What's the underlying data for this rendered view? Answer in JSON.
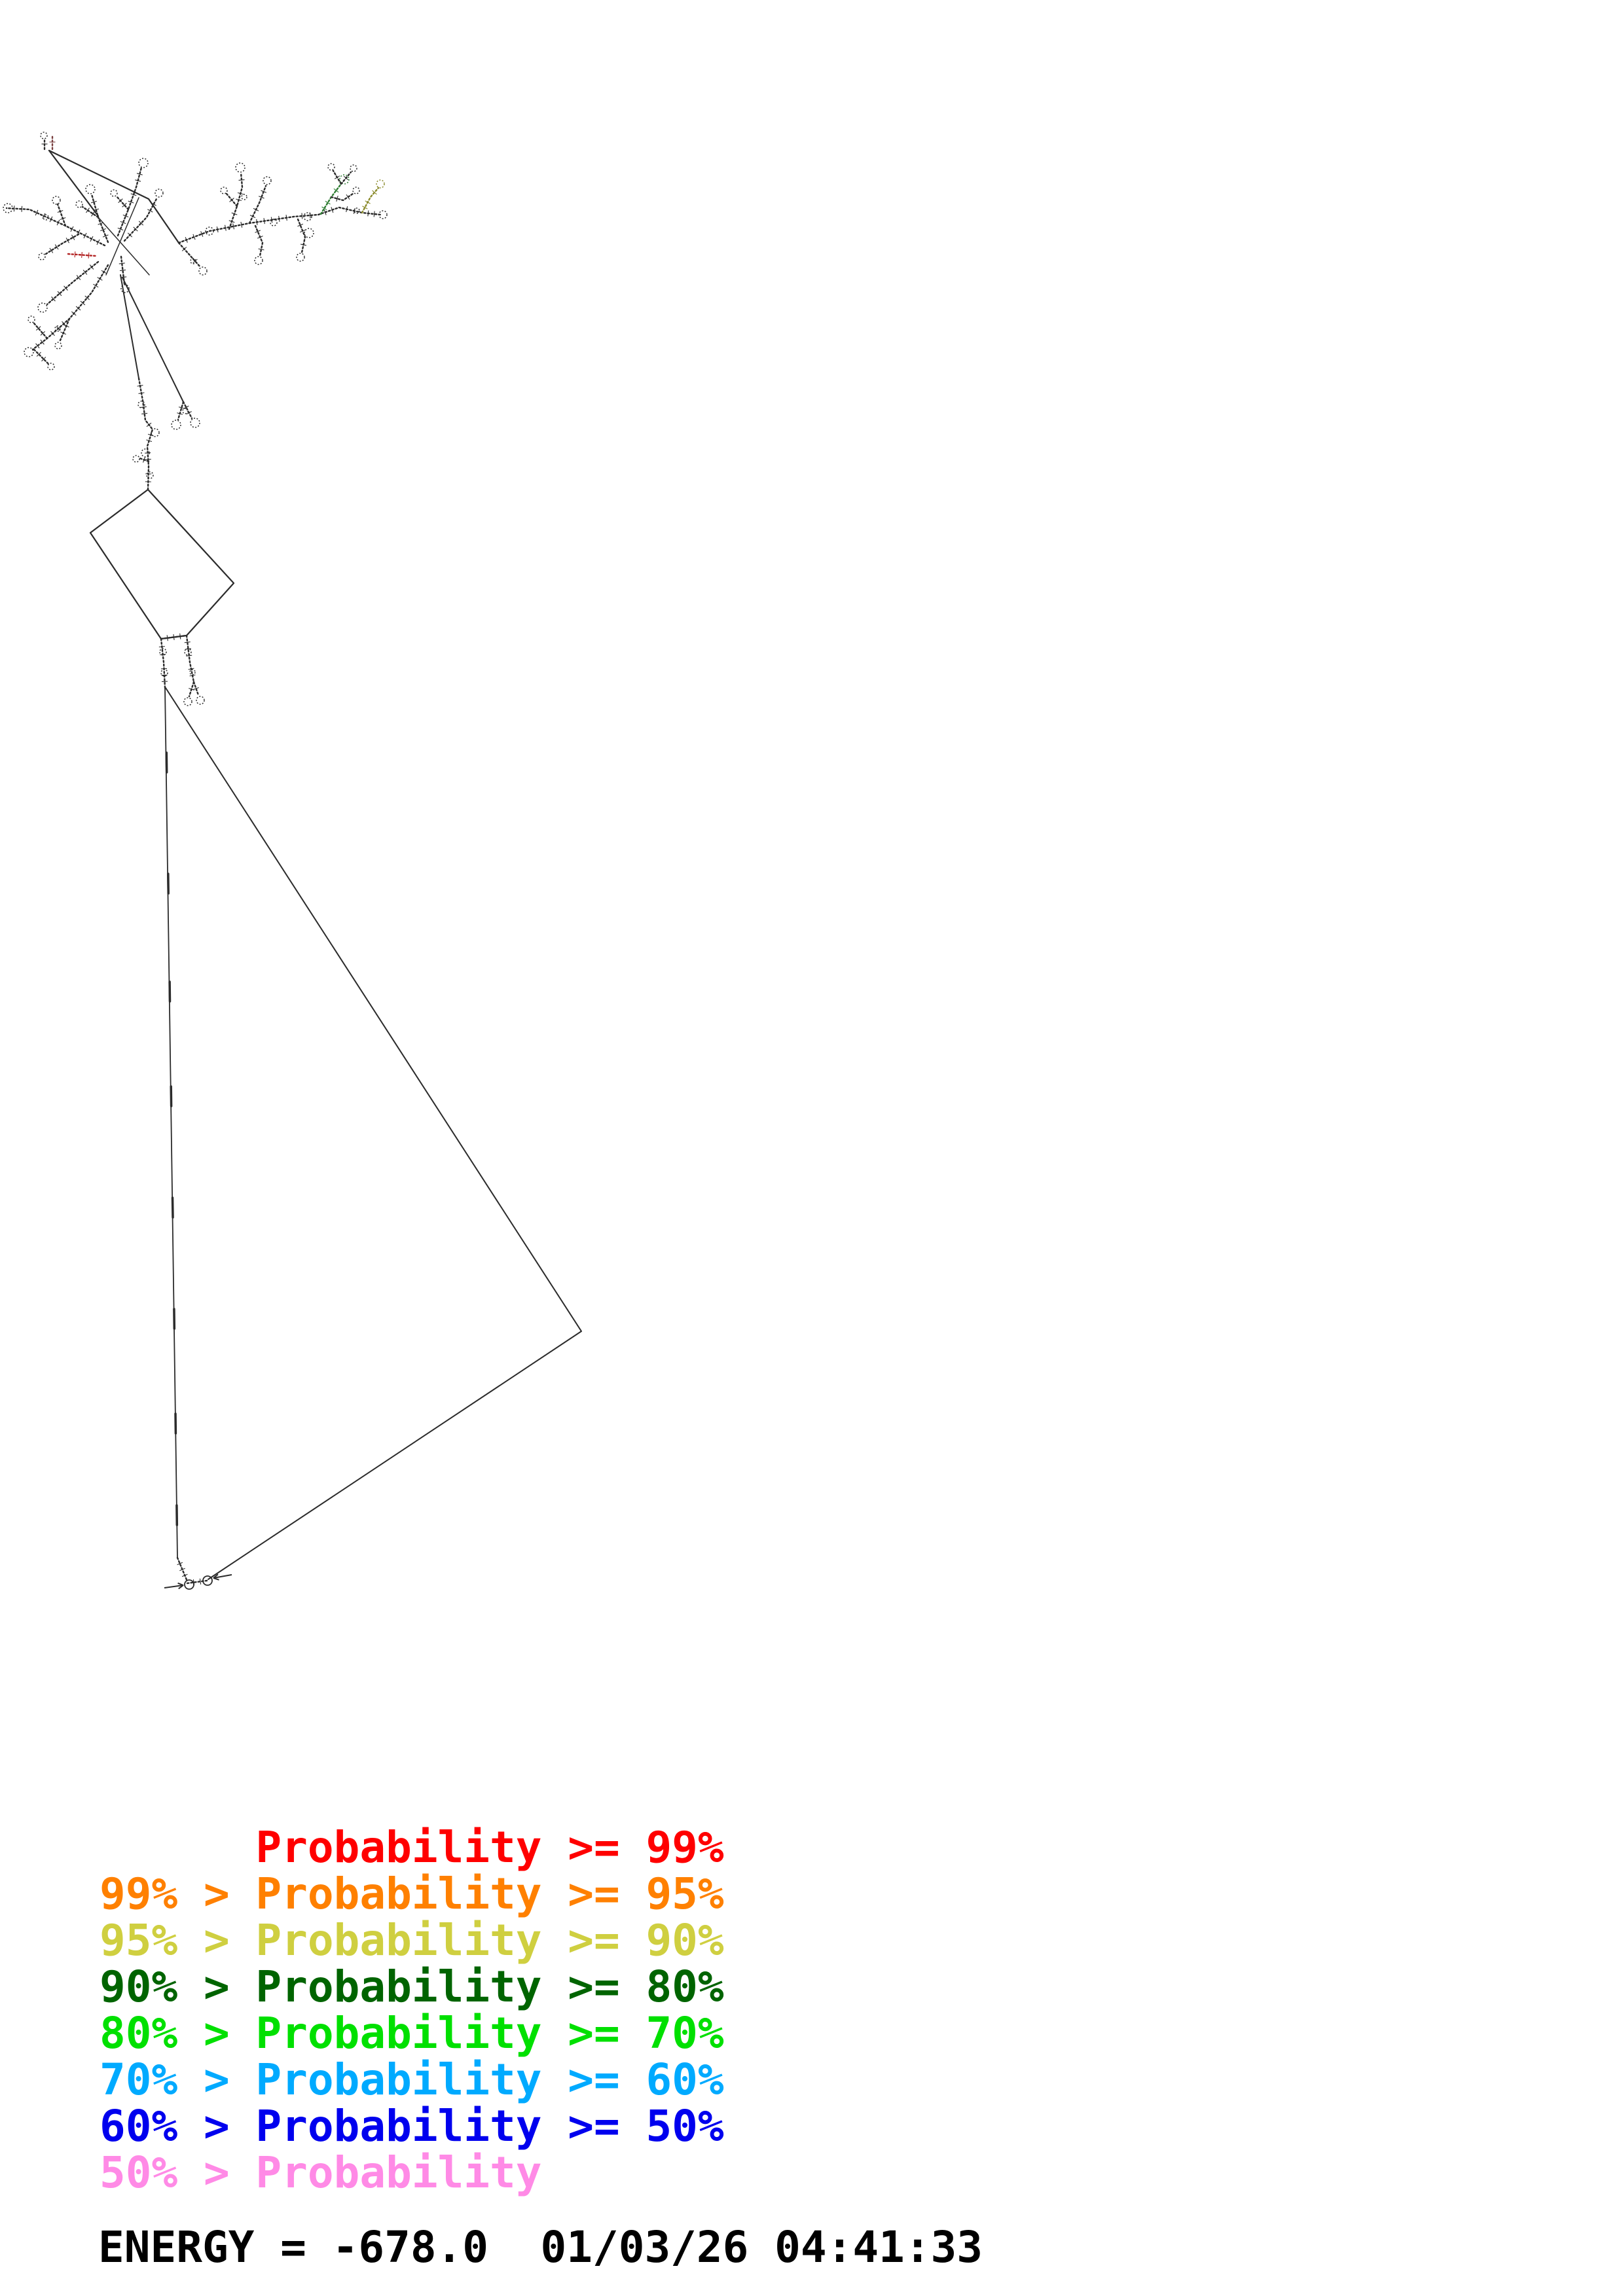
{
  "plot": {
    "type": "rna-secondary-structure-probability-plot",
    "background": "#ffffff"
  },
  "legend": {
    "rows": [
      {
        "text": "      Probability >= 99%",
        "color": "#ff0000"
      },
      {
        "text": "99% > Probability >= 95%",
        "color": "#ff8000"
      },
      {
        "text": "95% > Probability >= 90%",
        "color": "#cfcf40"
      },
      {
        "text": "90% > Probability >= 80%",
        "color": "#006400"
      },
      {
        "text": "80% > Probability >= 70%",
        "color": "#00e000"
      },
      {
        "text": "70% > Probability >= 60%",
        "color": "#00aaff"
      },
      {
        "text": "60% > Probability >= 50%",
        "color": "#0000ee"
      },
      {
        "text": "50% > Probability",
        "color": "#ff8ae6"
      }
    ]
  },
  "footer": {
    "energy_label": "ENERGY",
    "energy_value": "-678.0",
    "datetime": "01/03/26 04:41:33",
    "energy_line": "ENERGY = -678.0  01/03/26 04:41:33"
  },
  "structure": {
    "stroke": "#2b2b2b",
    "solid_lines": [
      {
        "name": "connector-stub-to-bend",
        "points": [
          [
            75,
            230
          ],
          [
            227,
            304
          ],
          [
            273,
            371
          ]
        ],
        "w": 2.2
      },
      {
        "name": "connector-stub-to-cluster",
        "points": [
          [
            75,
            230
          ],
          [
            150,
            330
          ]
        ],
        "w": 2.2
      },
      {
        "name": "connector-cluster-to-chain",
        "points": [
          [
            184,
            420
          ],
          [
            212,
            578
          ]
        ],
        "w": 2
      },
      {
        "name": "connector-cluster-to-hairpins",
        "points": [
          [
            187,
            424
          ],
          [
            280,
            614
          ]
        ],
        "w": 2
      },
      {
        "name": "diamond-loop",
        "points": [
          [
            226,
            748
          ],
          [
            357,
            891
          ],
          [
            285,
            971
          ],
          [
            246,
            976
          ],
          [
            138,
            814
          ],
          [
            226,
            748
          ]
        ],
        "w": 2.2
      },
      {
        "name": "triangle-left-edge",
        "points": [
          [
            252,
            1051
          ],
          [
            271,
            2380
          ]
        ],
        "w": 1.8
      },
      {
        "name": "triangle-right-edge",
        "points": [
          [
            253,
            1051
          ],
          [
            888,
            2034
          ],
          [
            318,
            2413
          ]
        ],
        "w": 2
      },
      {
        "name": "cluster-cross-line-a",
        "points": [
          [
            150,
            332
          ],
          [
            228,
            420
          ]
        ],
        "w": 1.5
      },
      {
        "name": "cluster-cross-line-b",
        "points": [
          [
            212,
            302
          ],
          [
            162,
            420
          ]
        ],
        "w": 1.5
      },
      {
        "name": "edge-tick",
        "points": [
          [
            254.3,
            1150
          ],
          [
            254.7,
            1180
          ]
        ],
        "w": 3.5
      },
      {
        "name": "edge-tick",
        "points": [
          [
            256.8,
            1335
          ],
          [
            257.2,
            1365
          ]
        ],
        "w": 3.5
      },
      {
        "name": "edge-tick",
        "points": [
          [
            259.1,
            1500
          ],
          [
            259.5,
            1530
          ]
        ],
        "w": 3.5
      },
      {
        "name": "edge-tick",
        "points": [
          [
            261.2,
            1660
          ],
          [
            261.6,
            1690
          ]
        ],
        "w": 3.5
      },
      {
        "name": "edge-tick",
        "points": [
          [
            263.5,
            1830
          ],
          [
            264.0,
            1860
          ]
        ],
        "w": 3.5
      },
      {
        "name": "edge-tick",
        "points": [
          [
            265.9,
            2000
          ],
          [
            266.3,
            2030
          ]
        ],
        "w": 3.5
      },
      {
        "name": "edge-tick",
        "points": [
          [
            268.0,
            2160
          ],
          [
            268.4,
            2190
          ]
        ],
        "w": 3.5
      },
      {
        "name": "edge-tick",
        "points": [
          [
            269.9,
            2300
          ],
          [
            270.3,
            2330
          ]
        ],
        "w": 3.5
      }
    ],
    "branches": [
      {
        "points": [
          [
            68,
            228
          ],
          [
            68,
            212
          ]
        ],
        "loops": [
          [
            67,
            207,
            5
          ]
        ]
      },
      {
        "points": [
          [
            80,
            228
          ],
          [
            80,
            206
          ]
        ],
        "loops": [],
        "color": "#7a4040"
      },
      {
        "points": [
          [
            160,
            375
          ],
          [
            100,
            345
          ],
          [
            45,
            320
          ],
          [
            10,
            318
          ]
        ],
        "loops": [
          [
            12,
            318,
            7
          ],
          [
            70,
            332,
            4
          ]
        ]
      },
      {
        "points": [
          [
            100,
            345
          ],
          [
            88,
            312
          ]
        ],
        "loops": [
          [
            86,
            306,
            6
          ]
        ]
      },
      {
        "points": [
          [
            120,
            358
          ],
          [
            95,
            372
          ],
          [
            70,
            388
          ]
        ],
        "loops": [
          [
            64,
            392,
            5
          ]
        ]
      },
      {
        "points": [
          [
            165,
            370
          ],
          [
            150,
            332
          ],
          [
            140,
            297
          ]
        ],
        "loops": [
          [
            138,
            289,
            7
          ]
        ]
      },
      {
        "points": [
          [
            150,
            332
          ],
          [
            126,
            316
          ]
        ],
        "loops": [
          [
            121,
            312,
            5
          ]
        ]
      },
      {
        "points": [
          [
            180,
            360
          ],
          [
            196,
            320
          ],
          [
            208,
            286
          ],
          [
            216,
            256
          ]
        ],
        "loops": [
          [
            219,
            249,
            7
          ]
        ]
      },
      {
        "points": [
          [
            196,
            320
          ],
          [
            178,
            300
          ]
        ],
        "loops": [
          [
            174,
            295,
            5
          ]
        ]
      },
      {
        "points": [
          [
            190,
            368
          ],
          [
            224,
            332
          ],
          [
            240,
            302
          ]
        ],
        "loops": [
          [
            243,
            295,
            6
          ]
        ]
      },
      {
        "points": [
          [
            104,
            388
          ],
          [
            146,
            391
          ]
        ],
        "loops": [],
        "color": "#b22222"
      },
      {
        "points": [
          [
            150,
            400
          ],
          [
            110,
            432
          ],
          [
            72,
            465
          ]
        ],
        "loops": [
          [
            65,
            470,
            7
          ]
        ]
      },
      {
        "points": [
          [
            165,
            405
          ],
          [
            140,
            447
          ],
          [
            106,
            487
          ],
          [
            72,
            517
          ],
          [
            50,
            534
          ]
        ],
        "loops": [
          [
            44,
            538,
            7
          ],
          [
            88,
            502,
            4
          ]
        ]
      },
      {
        "points": [
          [
            106,
            487
          ],
          [
            92,
            520
          ]
        ],
        "loops": [
          [
            89,
            528,
            5
          ]
        ]
      },
      {
        "points": [
          [
            72,
            517
          ],
          [
            52,
            494
          ]
        ],
        "loops": [
          [
            48,
            488,
            5
          ]
        ]
      },
      {
        "points": [
          [
            52,
            534
          ],
          [
            74,
            556
          ]
        ],
        "loops": [
          [
            78,
            560,
            5
          ]
        ]
      },
      {
        "points": [
          [
            185,
            392
          ],
          [
            190,
            434
          ]
        ],
        "loops": [
          [
            191,
            441,
            6
          ]
        ]
      },
      {
        "points": [
          [
            273,
            371
          ],
          [
            320,
            353
          ],
          [
            381,
            341
          ],
          [
            449,
            331
          ],
          [
            486,
            328
          ],
          [
            518,
            317
          ],
          [
            553,
            325
          ],
          [
            581,
            328
          ]
        ],
        "loops": [
          [
            320,
            353,
            6
          ],
          [
            418,
            340,
            5
          ],
          [
            470,
            331,
            6
          ],
          [
            545,
            322,
            4
          ],
          [
            585,
            328,
            6
          ]
        ]
      },
      {
        "points": [
          [
            273,
            371
          ],
          [
            290,
            390
          ],
          [
            306,
            408
          ]
        ],
        "loops": [
          [
            310,
            414,
            6
          ],
          [
            295,
            399,
            4
          ]
        ]
      },
      {
        "points": [
          [
            350,
            350
          ],
          [
            362,
            315
          ],
          [
            370,
            286
          ],
          [
            368,
            264
          ]
        ],
        "loops": [
          [
            367,
            256,
            7
          ],
          [
            373,
            301,
            4
          ]
        ]
      },
      {
        "points": [
          [
            362,
            315
          ],
          [
            346,
            296
          ]
        ],
        "loops": [
          [
            342,
            291,
            5
          ]
        ]
      },
      {
        "points": [
          [
            381,
            341
          ],
          [
            396,
            310
          ],
          [
            406,
            284
          ]
        ],
        "loops": [
          [
            408,
            276,
            6
          ]
        ]
      },
      {
        "points": [
          [
            490,
            327
          ],
          [
            506,
            301
          ],
          [
            521,
            281
          ]
        ],
        "loops": [
          [
            526,
            274,
            7
          ]
        ],
        "color": "#2e7d32"
      },
      {
        "points": [
          [
            506,
            301
          ],
          [
            524,
            306
          ],
          [
            539,
            296
          ]
        ],
        "loops": [
          [
            544,
            291,
            5
          ]
        ]
      },
      {
        "points": [
          [
            521,
            281
          ],
          [
            509,
            261
          ]
        ],
        "loops": [
          [
            506,
            255,
            5
          ]
        ]
      },
      {
        "points": [
          [
            521,
            281
          ],
          [
            536,
            263
          ]
        ],
        "loops": [
          [
            540,
            257,
            5
          ]
        ]
      },
      {
        "points": [
          [
            553,
            325
          ],
          [
            566,
            301
          ],
          [
            578,
            287
          ]
        ],
        "loops": [
          [
            581,
            281,
            6
          ]
        ],
        "color": "#8a8a2a"
      },
      {
        "points": [
          [
            390,
            345
          ],
          [
            401,
            371
          ],
          [
            397,
            391
          ]
        ],
        "loops": [
          [
            395,
            398,
            6
          ]
        ]
      },
      {
        "points": [
          [
            455,
            335
          ],
          [
            466,
            362
          ],
          [
            461,
            386
          ]
        ],
        "loops": [
          [
            459,
            393,
            6
          ],
          [
            472,
            356,
            7
          ]
        ]
      },
      {
        "points": [
          [
            212,
            578
          ],
          [
            218,
            612
          ],
          [
            222,
            642
          ],
          [
            233,
            656
          ],
          [
            225,
            682
          ],
          [
            227,
            712
          ],
          [
            226,
            748
          ]
        ],
        "loops": [
          [
            216,
            618,
            5
          ],
          [
            237,
            661,
            6
          ],
          [
            222,
            692,
            6
          ],
          [
            229,
            726,
            5
          ]
        ]
      },
      {
        "points": [
          [
            227,
            705
          ],
          [
            213,
            700
          ]
        ],
        "loops": [
          [
            208,
            701,
            5
          ]
        ]
      },
      {
        "points": [
          [
            280,
            614
          ],
          [
            272,
            641
          ]
        ],
        "loops": [
          [
            269,
            649,
            7
          ],
          [
            283,
            628,
            4
          ]
        ]
      },
      {
        "points": [
          [
            280,
            614
          ],
          [
            293,
            639
          ]
        ],
        "loops": [
          [
            298,
            646,
            7
          ]
        ]
      },
      {
        "points": [
          [
            246,
            976
          ],
          [
            285,
            971
          ]
        ],
        "loops": []
      },
      {
        "points": [
          [
            246,
            976
          ],
          [
            250,
            1012
          ],
          [
            252,
            1051
          ]
        ],
        "loops": [
          [
            249,
            996,
            5
          ],
          [
            251,
            1028,
            5
          ]
        ]
      },
      {
        "points": [
          [
            285,
            971
          ],
          [
            290,
            1012
          ],
          [
            296,
            1042
          ]
        ],
        "loops": [
          [
            287,
            996,
            5
          ],
          [
            294,
            1027,
            4
          ]
        ]
      },
      {
        "points": [
          [
            296,
            1042
          ],
          [
            289,
            1064
          ]
        ],
        "loops": [
          [
            287,
            1072,
            6
          ]
        ]
      },
      {
        "points": [
          [
            296,
            1042
          ],
          [
            303,
            1062
          ]
        ],
        "loops": [
          [
            306,
            1070,
            6
          ]
        ]
      },
      {
        "points": [
          [
            271,
            2380
          ],
          [
            286,
            2416
          ]
        ],
        "loops": []
      },
      {
        "points": [
          [
            286,
            2419
          ],
          [
            316,
            2415
          ]
        ],
        "loops": []
      }
    ],
    "circles": [
      [
        289,
        2421,
        7
      ],
      [
        317,
        2415,
        7
      ]
    ],
    "arrows": [
      {
        "from": [
          251,
          2426
        ],
        "to": [
          280,
          2422
        ]
      },
      {
        "from": [
          354,
          2406
        ],
        "to": [
          326,
          2411
        ]
      }
    ]
  }
}
